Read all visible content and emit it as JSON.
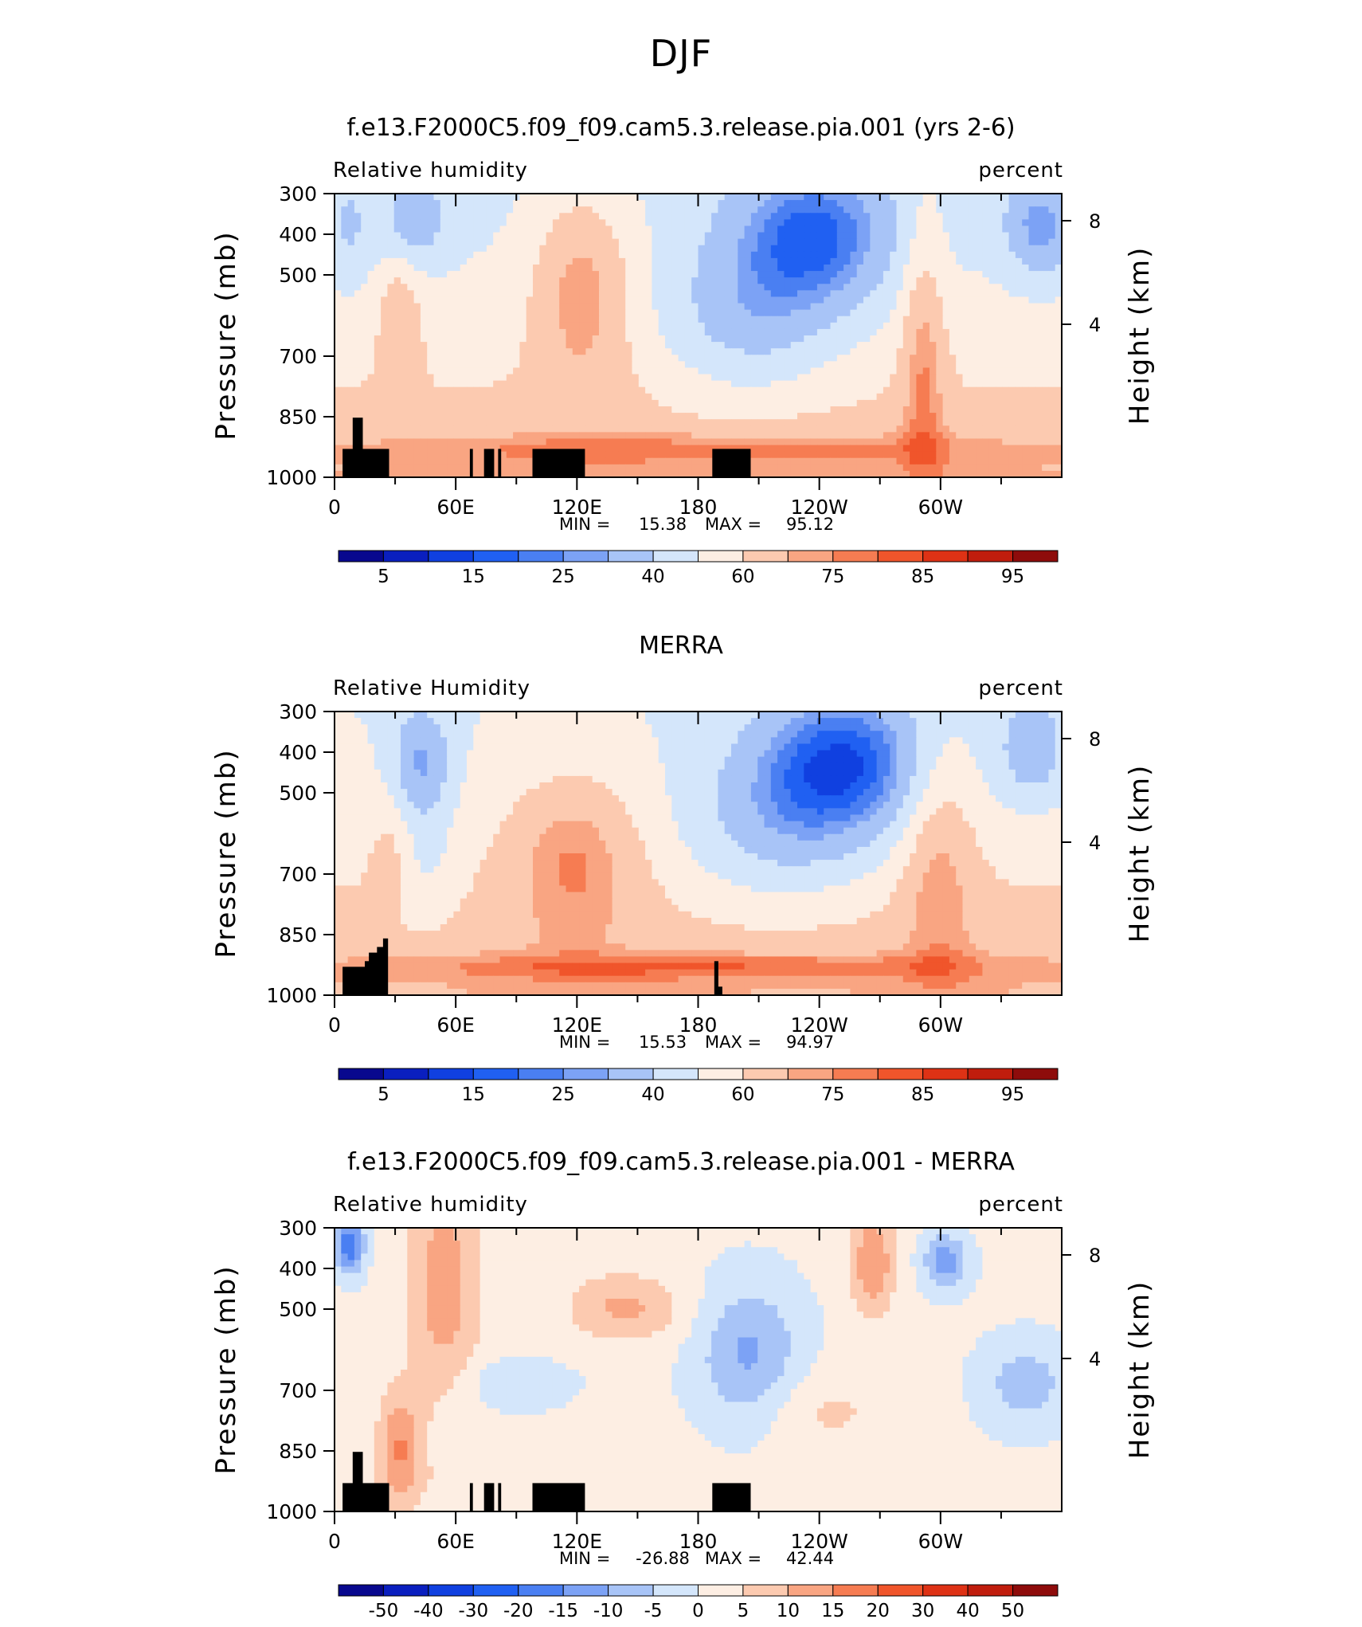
{
  "suptitle": "DJF",
  "colors": {
    "rh": [
      "#08088e",
      "#0a1fbf",
      "#1040e0",
      "#2060f2",
      "#4a7ff2",
      "#7ca2f5",
      "#a8c4f7",
      "#d4e6fb",
      "#fdeee3",
      "#fccab0",
      "#f9a582",
      "#f67c52",
      "#f0552b",
      "#de3215",
      "#c01d0d",
      "#8e0c0b"
    ],
    "diff": [
      "#08088e",
      "#0a1fbf",
      "#1040e0",
      "#2060f2",
      "#4a7ff2",
      "#7ca2f5",
      "#a8c4f7",
      "#d4e6fb",
      "#fdeee3",
      "#fccab0",
      "#f9a582",
      "#f67c52",
      "#f0552b",
      "#de3215",
      "#c01d0d",
      "#8e0c0b"
    ],
    "terrain": "#000000"
  },
  "chart_data": [
    {
      "type": "heatmap",
      "title": "f.e13.F2000C5.f09_f09.cam5.3.release.pia.001 (yrs 2-6)",
      "left_label": "Relative humidity",
      "right_label": "percent",
      "ylabel": "Pressure (mb)",
      "y2label": "Height (km)",
      "yticks": [
        "300",
        "400",
        "500",
        "700",
        "850",
        "1000"
      ],
      "y2ticks": [
        "8",
        "4"
      ],
      "xticks": [
        "0",
        "60E",
        "120E",
        "180",
        "120W",
        "60W"
      ],
      "ylim": [
        1000,
        300
      ],
      "min_label": "MIN =",
      "min_value": "15.38",
      "max_label": "MAX =",
      "max_value": "95.12",
      "colorbar_labels": [
        "5",
        "15",
        "25",
        "40",
        "60",
        "75",
        "85",
        "95"
      ],
      "palette": "rh",
      "field": "model"
    },
    {
      "type": "heatmap",
      "title": "MERRA",
      "left_label": "Relative Humidity",
      "right_label": "percent",
      "ylabel": "Pressure (mb)",
      "y2label": "Height (km)",
      "yticks": [
        "300",
        "400",
        "500",
        "700",
        "850",
        "1000"
      ],
      "y2ticks": [
        "8",
        "4"
      ],
      "xticks": [
        "0",
        "60E",
        "120E",
        "180",
        "120W",
        "60W"
      ],
      "ylim": [
        1000,
        300
      ],
      "min_label": "MIN =",
      "min_value": "15.53",
      "max_label": "MAX =",
      "max_value": "94.97",
      "colorbar_labels": [
        "5",
        "15",
        "25",
        "40",
        "60",
        "75",
        "85",
        "95"
      ],
      "palette": "rh",
      "field": "merra"
    },
    {
      "type": "heatmap",
      "title": "f.e13.F2000C5.f09_f09.cam5.3.release.pia.001 - MERRA",
      "left_label": "Relative humidity",
      "right_label": "percent",
      "ylabel": "Pressure (mb)",
      "y2label": "Height (km)",
      "yticks": [
        "300",
        "400",
        "500",
        "700",
        "850",
        "1000"
      ],
      "y2ticks": [
        "8",
        "4"
      ],
      "xticks": [
        "0",
        "60E",
        "120E",
        "180",
        "120W",
        "60W"
      ],
      "ylim": [
        1000,
        300
      ],
      "min_label": "MIN =",
      "min_value": "-26.88",
      "max_label": "MAX =",
      "max_value": "42.44",
      "colorbar_labels": [
        "-50",
        "-40",
        "-30",
        "-20",
        "-15",
        "-10",
        "-5",
        "0",
        "5",
        "10",
        "15",
        "20",
        "30",
        "40",
        "50"
      ],
      "palette": "diff",
      "field": "diff"
    }
  ]
}
